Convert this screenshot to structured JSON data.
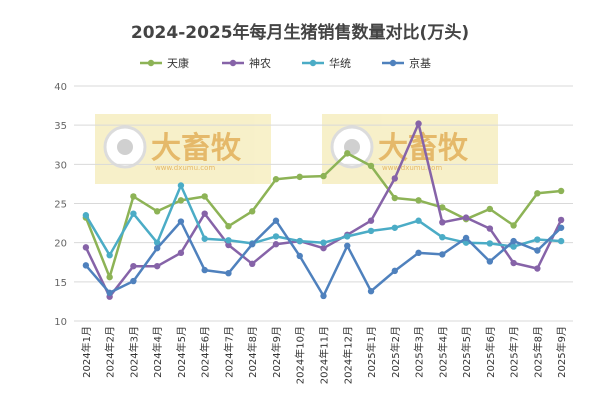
{
  "chart_data": {
    "type": "line",
    "title": "2024-2025年每月生猪销售数量对比(万头)",
    "xlabel": "",
    "ylabel": "",
    "ylim": [
      10,
      40
    ],
    "yticks": [
      10,
      15,
      20,
      25,
      30,
      35,
      40
    ],
    "grid": true,
    "legend_position": "top",
    "categories": [
      "2024年1月",
      "2024年2月",
      "2024年3月",
      "2024年4月",
      "2024年5月",
      "2024年6月",
      "2024年7月",
      "2024年8月",
      "2024年9月",
      "2024年10月",
      "2024年11月",
      "2024年12月",
      "2025年1月",
      "2025年2月",
      "2025年3月",
      "2025年4月",
      "2025年5月",
      "2025年6月",
      "2025年7月",
      "2025年8月",
      "2025年9月"
    ],
    "series": [
      {
        "name": "天康",
        "color": "#8db356",
        "values": [
          23.2,
          15.6,
          25.9,
          24.0,
          25.4,
          25.9,
          22.1,
          24.0,
          28.1,
          28.4,
          28.5,
          31.4,
          29.8,
          25.7,
          25.4,
          24.5,
          23.0,
          24.3,
          22.2,
          26.3,
          26.6
        ]
      },
      {
        "name": "神农",
        "color": "#8663a8",
        "values": [
          19.4,
          13.1,
          17.0,
          17.0,
          18.7,
          23.7,
          19.7,
          17.3,
          19.8,
          20.2,
          19.3,
          21.0,
          22.8,
          28.2,
          35.2,
          22.6,
          23.2,
          21.8,
          17.4,
          16.7,
          22.9
        ]
      },
      {
        "name": "华统",
        "color": "#4bacc6",
        "values": [
          23.5,
          18.4,
          23.7,
          20.0,
          27.3,
          20.5,
          20.3,
          19.9,
          20.8,
          20.2,
          20.0,
          20.8,
          21.5,
          21.9,
          22.8,
          20.7,
          20.0,
          19.9,
          19.5,
          20.4,
          20.2
        ]
      },
      {
        "name": "京基",
        "color": "#4f81bd",
        "values": [
          17.1,
          13.6,
          15.1,
          19.3,
          22.7,
          16.5,
          16.1,
          19.8,
          22.8,
          18.3,
          13.2,
          19.6,
          13.8,
          16.4,
          18.7,
          18.5,
          20.6,
          17.6,
          20.2,
          19.0,
          21.9
        ]
      }
    ]
  },
  "watermark": {
    "logo_text": "大畜牧",
    "sub_text": "www.dxumu.com"
  }
}
